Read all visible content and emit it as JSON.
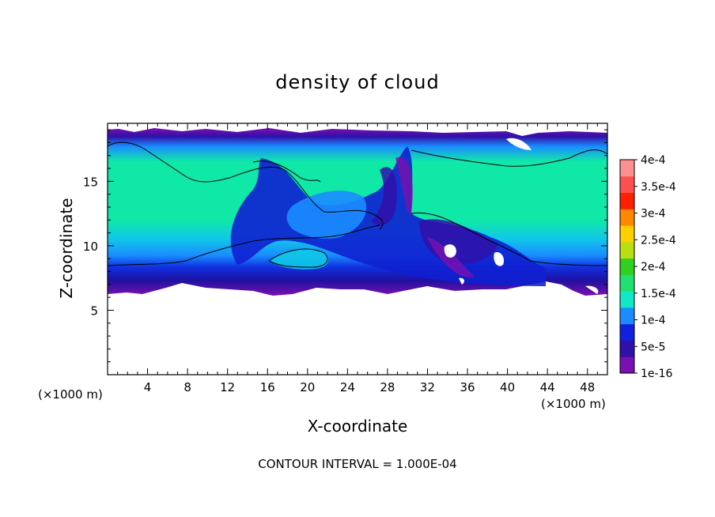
{
  "chart_data": {
    "type": "heatmap",
    "title": "density of cloud",
    "xlabel": "X-coordinate",
    "ylabel": "Z-coordinate",
    "x_unit_label": "(×1000 m)",
    "z_unit_label": "(×1000 m)",
    "xlim": [
      0,
      50
    ],
    "ylim": [
      0,
      19.5
    ],
    "x_ticks": [
      4,
      8,
      12,
      16,
      20,
      24,
      28,
      32,
      36,
      40,
      44,
      48
    ],
    "y_ticks": [
      5,
      10,
      15
    ],
    "colorbar": {
      "labels": [
        "1e-16",
        "5e-5",
        "1e-4",
        "1.5e-4",
        "2e-4",
        "2.5e-4",
        "3e-4",
        "3.5e-4",
        "4e-4"
      ],
      "levels": [
        1e-16,
        5e-05,
        0.0001,
        0.00015,
        0.0002,
        0.00025,
        0.0003,
        0.00035,
        0.0004
      ],
      "colors": [
        "#7a10b0",
        "#3010a8",
        "#1020e0",
        "#1a8cff",
        "#10e8c8",
        "#20e070",
        "#30d020",
        "#b8e010",
        "#ffd000",
        "#ff8800",
        "#ff2000",
        "#ff5050",
        "#ff9090"
      ]
    },
    "cloud_layer": {
      "base_z": 6.5,
      "top_z": 19.2,
      "core_value": 0.00016,
      "edge_value": 5e-05
    },
    "footer": "CONTOUR INTERVAL = 1.000E-04"
  }
}
